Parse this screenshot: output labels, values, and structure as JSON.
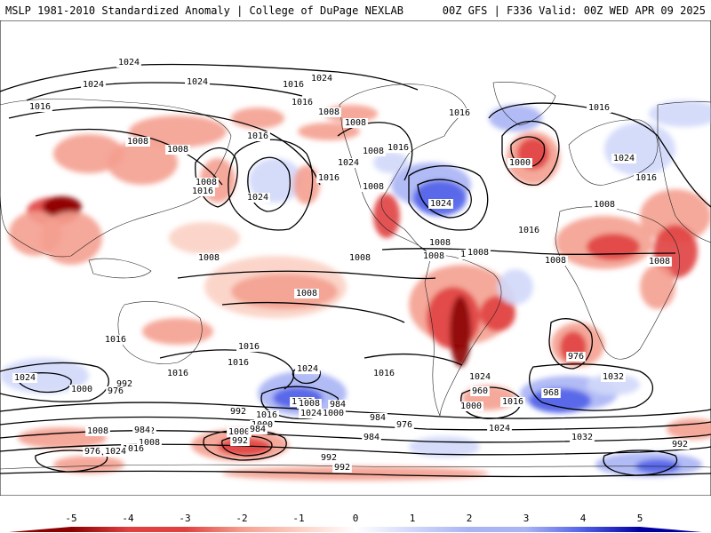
{
  "header": {
    "left": "MSLP 1981-2010 Standardized Anomaly | College of DuPage NEXLAB",
    "right": "00Z GFS | F336 Valid: 00Z WED APR 09 2025"
  },
  "colors": {
    "neg_strong": "#8b0000",
    "neg_mid": "#e04040",
    "neg_light": "#f4a090",
    "neg_faint": "#fbd0c4",
    "pos_faint": "#d0d8fa",
    "pos_light": "#a8b4f4",
    "pos_mid": "#5060e8",
    "pos_strong": "#0000a0"
  },
  "legend": {
    "ticks": [
      "-5",
      "-4",
      "-3",
      "-2",
      "-1",
      "0",
      "1",
      "2",
      "3",
      "4",
      "5"
    ]
  },
  "contour_labels": [
    "1024",
    "1024",
    "1024",
    "1016",
    "1024",
    "1016",
    "1008",
    "1008",
    "1016",
    "1008",
    "1016",
    "1008",
    "1008",
    "1016",
    "1024",
    "1008",
    "1016",
    "1024",
    "1016",
    "1008",
    "1016",
    "1024",
    "1016",
    "1000",
    "1024",
    "1008",
    "1016",
    "1008",
    "1008",
    "1008",
    "1008",
    "1008",
    "1008",
    "1008",
    "1008",
    "1008",
    "1016",
    "1016",
    "1024",
    "1016",
    "1016",
    "1016",
    "1024",
    "1000",
    "992",
    "976",
    "984",
    "992",
    "1000",
    "1008",
    "1016",
    "1024",
    "1032",
    "976",
    "968",
    "960",
    "1000",
    "1008",
    "992",
    "984",
    "976",
    "984",
    "992",
    "1000",
    "1000",
    "992",
    "1016",
    "1016",
    "1024",
    "1000",
    "992",
    "984",
    "1008",
    "1016",
    "1024",
    "976",
    "984",
    "1032",
    "992",
    "1024"
  ]
}
